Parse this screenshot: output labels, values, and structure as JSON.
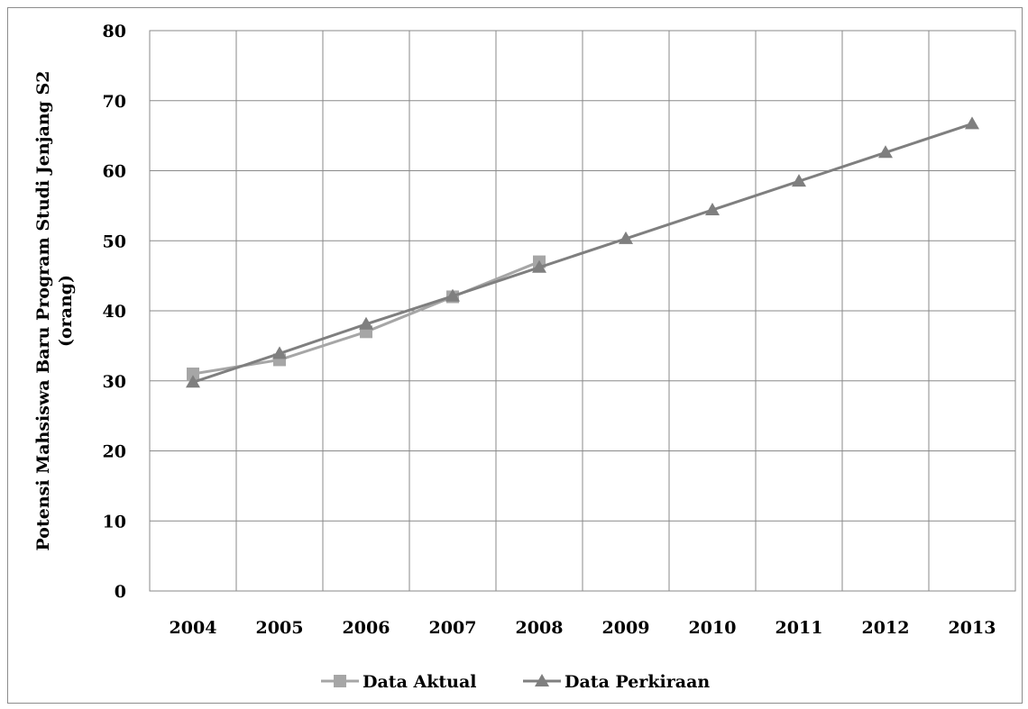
{
  "chart_data": {
    "type": "line",
    "title": "",
    "xlabel": "",
    "ylabel_line1": "Potensi Mahsiswa Baru Program Studi Jenjang S2",
    "ylabel_line2": "(orang)",
    "categories": [
      "2004",
      "2005",
      "2006",
      "2007",
      "2008",
      "2009",
      "2010",
      "2011",
      "2012",
      "2013"
    ],
    "ylim": [
      0,
      80
    ],
    "yticks": [
      "0",
      "10",
      "20",
      "30",
      "40",
      "50",
      "60",
      "70",
      "80"
    ],
    "grid": true,
    "legend_position": "bottom",
    "series": [
      {
        "name": "Data Aktual",
        "marker": "square",
        "color": "#a6a6a6",
        "values": [
          31,
          33,
          37,
          42,
          47,
          null,
          null,
          null,
          null,
          null
        ]
      },
      {
        "name": "Data Perkiraan",
        "marker": "triangle",
        "color": "#7f7f7f",
        "values": [
          29.8,
          33.9,
          38.1,
          42.1,
          46.2,
          50.3,
          54.4,
          58.5,
          62.6,
          66.7
        ]
      }
    ]
  }
}
